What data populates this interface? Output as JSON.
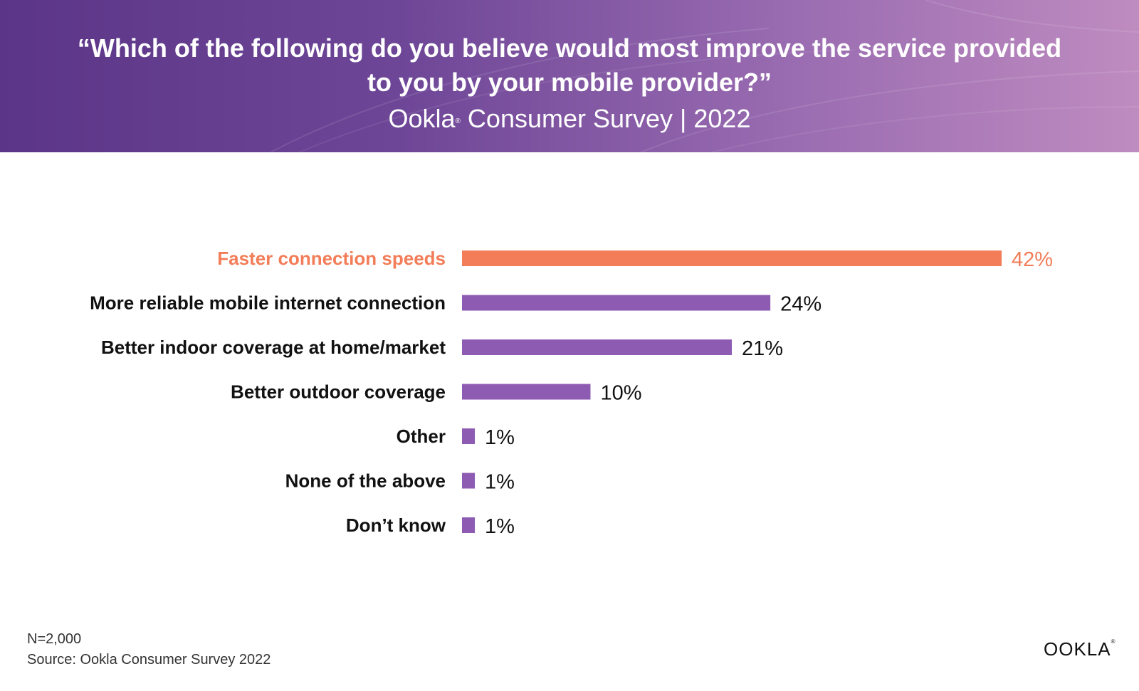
{
  "header": {
    "title_line1": "“Which of the following do you believe would most improve the service provided",
    "title_line2": "to you by your mobile provider?”",
    "subtitle_brand": "Ookla",
    "subtitle_mark": "®",
    "subtitle_rest": " Consumer Survey | 2022"
  },
  "chart_data": {
    "type": "bar",
    "orientation": "horizontal",
    "categories": [
      "Faster connection speeds",
      "More reliable mobile internet connection",
      "Better indoor coverage at home/market",
      "Better outdoor coverage",
      "Other",
      "None of the above",
      "Don’t know"
    ],
    "values": [
      42,
      24,
      21,
      10,
      1,
      1,
      1
    ],
    "value_labels": [
      "42%",
      "24%",
      "21%",
      "10%",
      "1%",
      "1%",
      "1%"
    ],
    "highlight_index": 0,
    "colors": {
      "highlight": "#f27d58",
      "default": "#8e5bb3",
      "label": "#111111"
    },
    "xlim": [
      0,
      42
    ]
  },
  "footer": {
    "n": "N=2,000",
    "source": "Source: Ookla Consumer Survey 2022"
  },
  "logo": {
    "text": "OOKLA",
    "mark": "®"
  }
}
